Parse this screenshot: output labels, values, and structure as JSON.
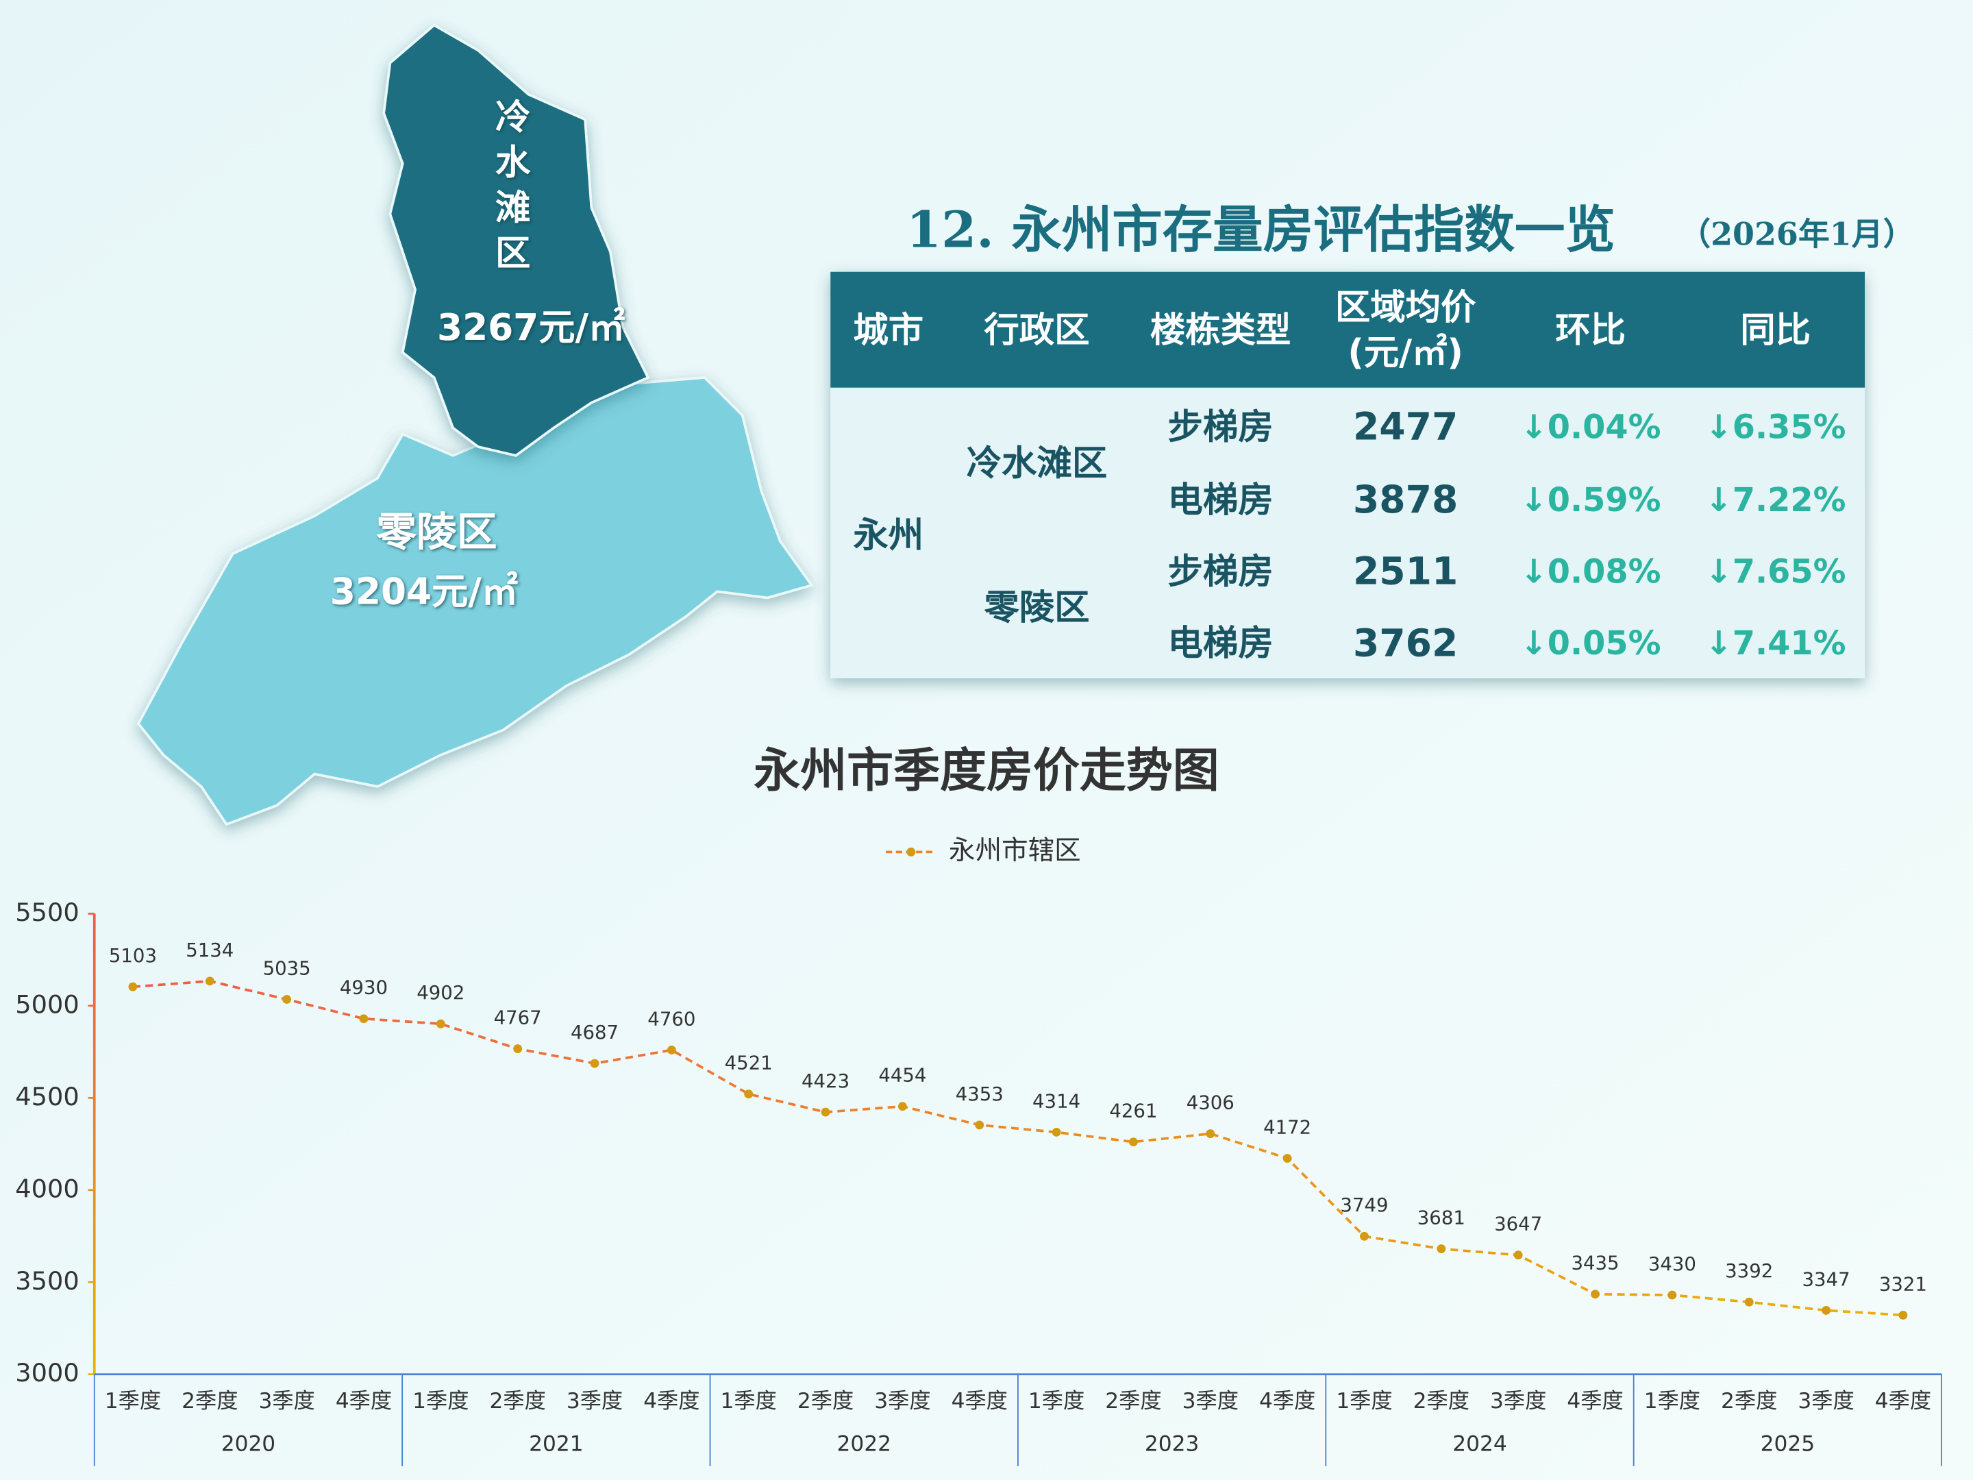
{
  "map": {
    "regions": [
      {
        "name": "冷水滩区",
        "price_label": "3267元/㎡"
      },
      {
        "name": "零陵区",
        "price_label": "3204元/㎡"
      }
    ]
  },
  "table": {
    "title": "12. 永州市存量房评估指数一览",
    "subtitle": "（2026年1月）",
    "headers": [
      "城市",
      "行政区",
      "楼栋类型",
      [
        "区域均价",
        "(元/㎡)"
      ],
      "环比",
      "同比"
    ],
    "city": "永州",
    "districts": [
      {
        "name": "冷水滩区",
        "rows": [
          {
            "type": "步梯房",
            "price": 2477,
            "mom": "↓0.04%",
            "yoy": "↓6.35%"
          },
          {
            "type": "电梯房",
            "price": 3878,
            "mom": "↓0.59%",
            "yoy": "↓7.22%"
          }
        ]
      },
      {
        "name": "零陵区",
        "rows": [
          {
            "type": "步梯房",
            "price": 2511,
            "mom": "↓0.08%",
            "yoy": "↓7.65%"
          },
          {
            "type": "电梯房",
            "price": 3762,
            "mom": "↓0.05%",
            "yoy": "↓7.41%"
          }
        ]
      }
    ]
  },
  "chart_data": {
    "type": "line",
    "title": "永州市季度房价走势图",
    "categories": [
      "1季度",
      "2季度",
      "3季度",
      "4季度",
      "1季度",
      "2季度",
      "3季度",
      "4季度",
      "1季度",
      "2季度",
      "3季度",
      "4季度",
      "1季度",
      "2季度",
      "3季度",
      "4季度",
      "1季度",
      "2季度",
      "3季度",
      "4季度",
      "1季度",
      "2季度",
      "3季度",
      "4季度"
    ],
    "category_groups": [
      "2020",
      "2021",
      "2022",
      "2023",
      "2024",
      "2025"
    ],
    "series": [
      {
        "name": "永州市辖区",
        "color": [
          "#f05a4a",
          "#e8b400"
        ],
        "marker_color": "#d49a12",
        "values": [
          5103,
          5134,
          5035,
          4930,
          4902,
          4767,
          4687,
          4760,
          4521,
          4423,
          4454,
          4353,
          4314,
          4261,
          4306,
          4172,
          3749,
          3681,
          3647,
          3435,
          3430,
          3392,
          3347,
          3321
        ]
      }
    ],
    "ylim": [
      3000,
      5500
    ],
    "yticks": [
      3000,
      3500,
      4000,
      4500,
      5000,
      5500
    ],
    "legend": "top",
    "data_labels": true
  }
}
